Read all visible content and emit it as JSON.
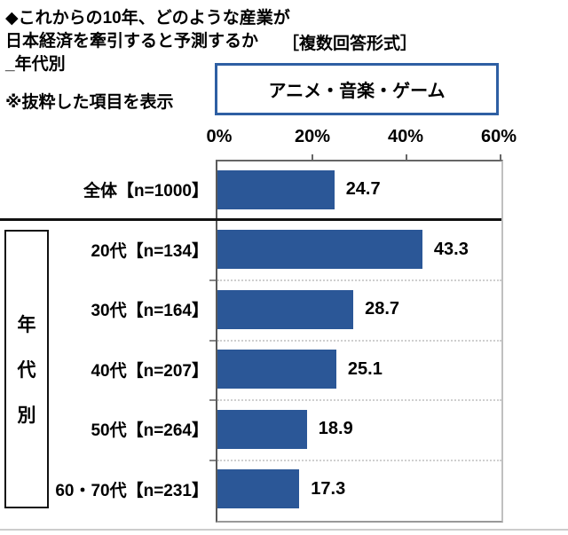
{
  "title": {
    "line1": "◆これからの10年、どのような産業が",
    "line2": "日本経済を牽引すると予測するか",
    "line3": "_年代別",
    "format_note": "［複数回答形式］"
  },
  "excerpt_note": "※抜粋した項目を表示",
  "item_box": {
    "label": "アニメ・音楽・ゲーム"
  },
  "group_box": {
    "char1": "年",
    "char2": "代",
    "char3": "別",
    "label": "年代別"
  },
  "colors": {
    "bar": "#2B5797",
    "item_box_border": "#2E5FA3"
  },
  "chart_data": {
    "type": "bar",
    "orientation": "horizontal",
    "title": "アニメ・音楽・ゲーム",
    "categories": [
      "全体【n=1000】",
      "20代【n=134】",
      "30代【n=164】",
      "40代【n=207】",
      "50代【n=264】",
      "60・70代【n=231】"
    ],
    "values": [
      24.7,
      43.3,
      28.7,
      25.1,
      18.9,
      17.3
    ],
    "value_labels": [
      "24.7",
      "43.3",
      "28.7",
      "25.1",
      "18.9",
      "17.3"
    ],
    "xlim": [
      0,
      60
    ],
    "x_tick_labels": [
      "0%",
      "20%",
      "40%",
      "60%"
    ],
    "grid": "dotted row separators",
    "group_label": "年代別",
    "legend": "none"
  }
}
